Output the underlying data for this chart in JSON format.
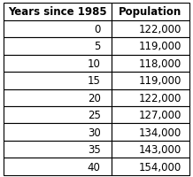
{
  "col1_header": "Years since 1985",
  "col2_header": "Population",
  "rows": [
    [
      "0",
      "122,000"
    ],
    [
      "5",
      "119,000"
    ],
    [
      "10",
      "118,000"
    ],
    [
      "15",
      "119,000"
    ],
    [
      "20",
      "122,000"
    ],
    [
      "25",
      "127,000"
    ],
    [
      "30",
      "134,000"
    ],
    [
      "35",
      "143,000"
    ],
    [
      "40",
      "154,000"
    ]
  ],
  "background_color": "#ffffff",
  "border_color": "#000000",
  "header_font_size": 8.5,
  "cell_font_size": 8.5,
  "fig_width": 2.18,
  "fig_height": 2.01,
  "dpi": 100
}
